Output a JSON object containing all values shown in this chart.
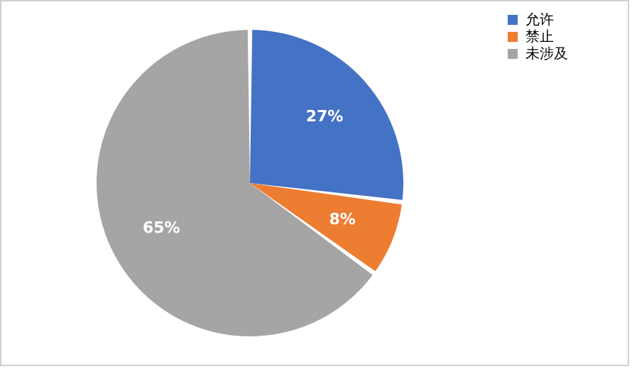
{
  "chart_data": {
    "type": "pie",
    "categories": [
      "允许",
      "禁止",
      "未涉及"
    ],
    "values": [
      27,
      8,
      65
    ],
    "colors": [
      "#4472c4",
      "#ed7d31",
      "#a5a5a5"
    ],
    "value_labels": [
      "27%",
      "8%",
      "65%"
    ],
    "legend": "right"
  }
}
